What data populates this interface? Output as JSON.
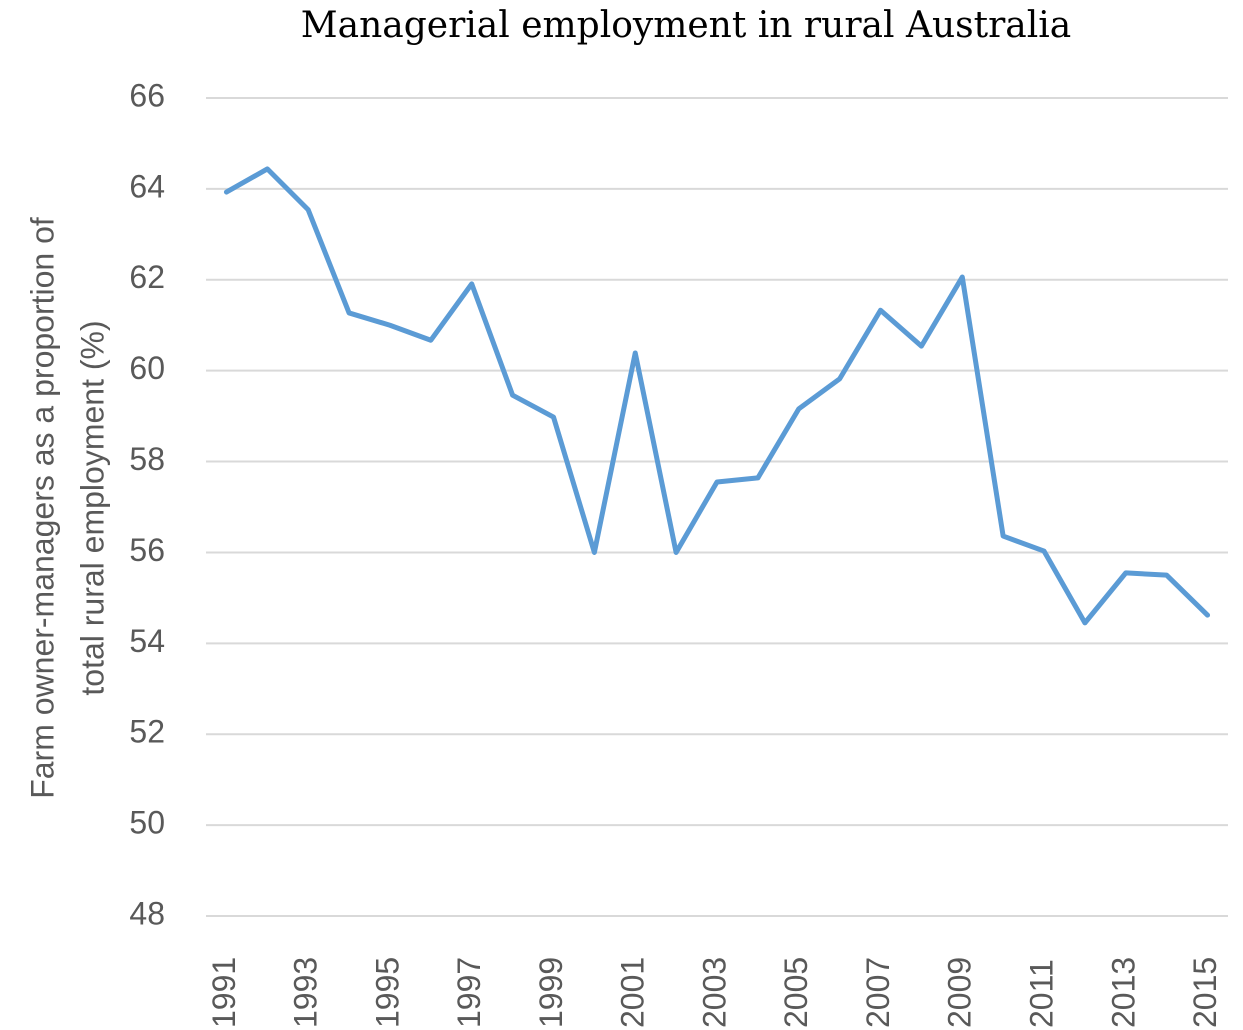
{
  "chart_data": {
    "type": "line",
    "title": "Managerial employment in rural Australia",
    "ylabel": [
      "Farm owner-managers as a proportion of",
      "total rural employment (%)"
    ],
    "categories": [
      "1991",
      null,
      "1993",
      null,
      "1995",
      null,
      "1997",
      null,
      "1999",
      null,
      "2001",
      null,
      "2003",
      null,
      "2005",
      null,
      "2007",
      null,
      "2009",
      null,
      "2011",
      null,
      "2013",
      null,
      "2015"
    ],
    "series": [
      {
        "name": "Farm owner-managers",
        "color": "#5b9bd5",
        "values": [
          63.93,
          64.44,
          63.54,
          61.27,
          61.0,
          60.67,
          61.91,
          59.46,
          58.98,
          56.0,
          60.39,
          56.0,
          57.55,
          57.64,
          59.16,
          59.82,
          61.33,
          60.54,
          62.06,
          56.36,
          56.03,
          54.45,
          55.55,
          55.5,
          54.62
        ]
      }
    ],
    "ylim": [
      48,
      66
    ],
    "yticks": [
      48,
      50,
      52,
      54,
      56,
      58,
      60,
      62,
      64,
      66
    ],
    "grid": true
  }
}
